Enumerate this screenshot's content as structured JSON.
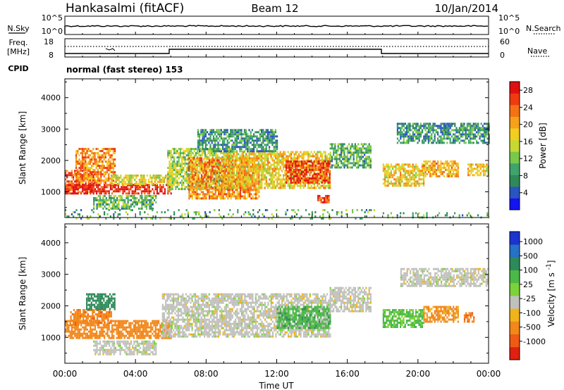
{
  "header": {
    "station": "Hankasalmi (fitACF)",
    "beam": "Beam 12",
    "date": "10/Jan/2014"
  },
  "housekeeping": {
    "nsky_label": "N.Sky",
    "nsearch_label": "N.Search",
    "left_ticks_top": [
      "10^5",
      "10^0"
    ],
    "right_ticks_top": [
      "10^5",
      "10^0"
    ],
    "freq_label_line1": "Freq.",
    "freq_label_line2": "[MHz]",
    "freq_ticks": [
      "18",
      "8"
    ],
    "nave_label": "Nave",
    "nave_ticks": [
      "60",
      "0"
    ],
    "cpid_label": "CPID",
    "cpid_text": "normal (fast stereo) 153"
  },
  "chart_data": [
    {
      "type": "heatmap",
      "panel": "power",
      "ylabel": "Slant Range [km]",
      "xlabel": "",
      "ylim": [
        180,
        4600
      ],
      "yticks": [
        1000,
        2000,
        3000,
        4000
      ],
      "xlim": [
        0,
        24
      ],
      "colorbar_label": "Power [dB]",
      "colorbar_ticks": [
        4,
        8,
        12,
        16,
        20,
        24,
        28
      ],
      "colorbar_colors": [
        "#1414f0",
        "#2a55c0",
        "#2f8a5a",
        "#3fa36c",
        "#79c84b",
        "#c7d832",
        "#f2ce1e",
        "#f6a11a",
        "#f57214",
        "#f03a10",
        "#e01010"
      ],
      "echoes": [
        {
          "t0": 0.0,
          "t1": 1.6,
          "r0": 1000,
          "r1": 1700,
          "dB": 24
        },
        {
          "t0": 0.6,
          "t1": 2.8,
          "r0": 1300,
          "r1": 2400,
          "dB": 22
        },
        {
          "t0": 0.0,
          "t1": 6.0,
          "r0": 950,
          "r1": 1250,
          "dB": 28
        },
        {
          "t0": 2.6,
          "t1": 6.0,
          "r0": 1250,
          "r1": 1550,
          "dB": 16
        },
        {
          "t0": 1.6,
          "t1": 5.2,
          "r0": 450,
          "r1": 900,
          "dB": 10
        },
        {
          "t0": 5.8,
          "t1": 9.5,
          "r0": 1100,
          "r1": 2400,
          "dB": 14
        },
        {
          "t0": 7.0,
          "t1": 11.0,
          "r0": 800,
          "r1": 2100,
          "dB": 22
        },
        {
          "t0": 9.0,
          "t1": 15.0,
          "r0": 1100,
          "r1": 2300,
          "dB": 18
        },
        {
          "t0": 12.5,
          "t1": 15.0,
          "r0": 1300,
          "r1": 2000,
          "dB": 26
        },
        {
          "t0": 14.3,
          "t1": 15.0,
          "r0": 650,
          "r1": 900,
          "dB": 26
        },
        {
          "t0": 15.0,
          "t1": 17.3,
          "r0": 1800,
          "r1": 2550,
          "dB": 10
        },
        {
          "t0": 7.5,
          "t1": 12.0,
          "r0": 2300,
          "r1": 3000,
          "dB": 8
        },
        {
          "t0": 18.8,
          "t1": 24.0,
          "r0": 2550,
          "r1": 3200,
          "dB": 8
        },
        {
          "t0": 18.0,
          "t1": 20.3,
          "r0": 1200,
          "r1": 1900,
          "dB": 18
        },
        {
          "t0": 20.3,
          "t1": 22.3,
          "r0": 1500,
          "r1": 2000,
          "dB": 20
        },
        {
          "t0": 22.8,
          "t1": 24.0,
          "r0": 1500,
          "r1": 1900,
          "dB": 18
        },
        {
          "t0": 0.0,
          "t1": 17.5,
          "r0": 180,
          "r1": 450,
          "dB": 10
        },
        {
          "t0": 18.0,
          "t1": 24.0,
          "r0": 180,
          "r1": 350,
          "dB": 10
        }
      ]
    },
    {
      "type": "heatmap",
      "panel": "velocity",
      "ylabel": "Slant Range [km]",
      "xlabel": "Time UT",
      "ylim": [
        180,
        4600
      ],
      "yticks": [
        1000,
        2000,
        3000,
        4000
      ],
      "xlim": [
        0,
        24
      ],
      "xticks": [
        "00:00",
        "04:00",
        "08:00",
        "12:00",
        "16:00",
        "20:00",
        "00:00"
      ],
      "colorbar_label": "Velocity [m s^-1]",
      "colorbar_ticks": [
        1000,
        500,
        100,
        25,
        -25,
        -100,
        -500,
        -1000
      ],
      "colorbar_colors": [
        "#1c34d0",
        "#2672c6",
        "#2f8a5a",
        "#4cb848",
        "#7cd23a",
        "#c0c0bc",
        "#f0b41a",
        "#f2871a",
        "#ef5a14",
        "#e02010"
      ],
      "echoes": [
        {
          "t0": 0.0,
          "t1": 6.0,
          "r0": 950,
          "r1": 1550,
          "v": -300
        },
        {
          "t0": 0.3,
          "t1": 2.6,
          "r0": 1400,
          "r1": 1900,
          "v": -400
        },
        {
          "t0": 1.2,
          "t1": 2.8,
          "r0": 1900,
          "r1": 2400,
          "v": 300
        },
        {
          "t0": 1.6,
          "t1": 5.2,
          "r0": 450,
          "r1": 900,
          "v": 0
        },
        {
          "t0": 5.5,
          "t1": 15.0,
          "r0": 1000,
          "r1": 2400,
          "v": 0
        },
        {
          "t0": 12.0,
          "t1": 15.0,
          "r0": 1300,
          "r1": 2000,
          "v": 80
        },
        {
          "t0": 15.0,
          "t1": 17.3,
          "r0": 1800,
          "r1": 2600,
          "v": 0
        },
        {
          "t0": 19.0,
          "t1": 24.0,
          "r0": 2600,
          "r1": 3200,
          "v": 0
        },
        {
          "t0": 18.0,
          "t1": 20.3,
          "r0": 1300,
          "r1": 1900,
          "v": 60
        },
        {
          "t0": 20.3,
          "t1": 22.3,
          "r0": 1500,
          "r1": 2000,
          "v": -150
        },
        {
          "t0": 22.6,
          "t1": 23.2,
          "r0": 1500,
          "r1": 1800,
          "v": -400
        }
      ]
    }
  ]
}
